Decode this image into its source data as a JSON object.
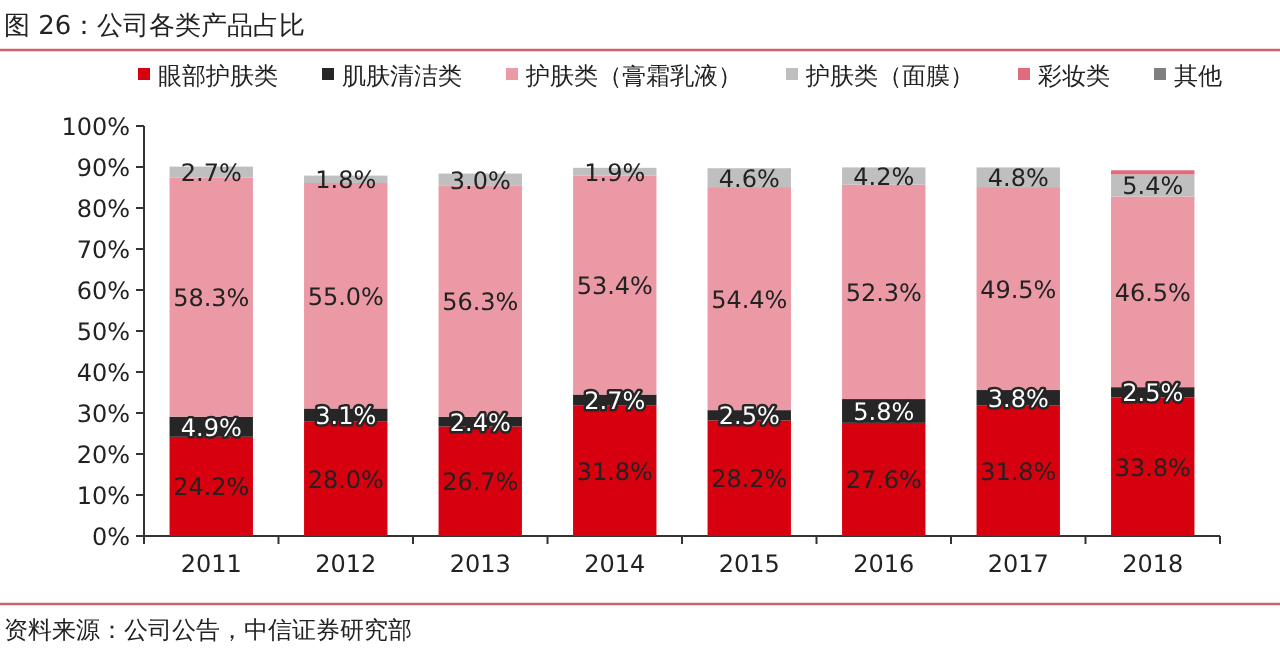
{
  "chart_data": {
    "type": "bar",
    "stacked": true,
    "title": "图 26：公司各类产品占比",
    "annotations": [
      "资料来源：公司公告，中信证券研究部"
    ],
    "categories": [
      "2011",
      "2012",
      "2013",
      "2014",
      "2015",
      "2016",
      "2017",
      "2018"
    ],
    "ylim": [
      0,
      100
    ],
    "yticks": [
      {
        "value": 0,
        "label": "0%"
      },
      {
        "value": 10,
        "label": "10%"
      },
      {
        "value": 20,
        "label": "20%"
      },
      {
        "value": 30,
        "label": "30%"
      },
      {
        "value": 40,
        "label": "40%"
      },
      {
        "value": 50,
        "label": "50%"
      },
      {
        "value": 60,
        "label": "60%"
      },
      {
        "value": 70,
        "label": "70%"
      },
      {
        "value": 80,
        "label": "80%"
      },
      {
        "value": 90,
        "label": "90%"
      },
      {
        "value": 100,
        "label": "100%"
      }
    ],
    "legend": "top",
    "grid": false,
    "series": [
      {
        "name": "眼部护肤类",
        "color": "#d7000f",
        "values": [
          24.2,
          28.0,
          26.7,
          31.8,
          28.2,
          27.6,
          31.8,
          33.8
        ],
        "value_labels": [
          "24.2%",
          "28.0%",
          "26.7%",
          "31.8%",
          "28.2%",
          "27.6%",
          "31.8%",
          "33.8%"
        ]
      },
      {
        "name": "肌肤清洁类",
        "color": "#262626",
        "values": [
          4.9,
          3.1,
          2.4,
          2.7,
          2.5,
          5.8,
          3.8,
          2.5
        ],
        "value_labels": [
          "4.9%",
          "3.1%",
          "2.4%",
          "2.7%",
          "2.5%",
          "5.8%",
          "3.8%",
          "2.5%"
        ]
      },
      {
        "name": "护肤类（膏霜乳液）",
        "color": "#eb9aa5",
        "values": [
          58.3,
          55.0,
          56.3,
          53.4,
          54.4,
          52.3,
          49.5,
          46.5
        ],
        "value_labels": [
          "58.3%",
          "55.0%",
          "56.3%",
          "53.4%",
          "54.4%",
          "52.3%",
          "49.5%",
          "46.5%"
        ]
      },
      {
        "name": "护肤类（面膜）",
        "color": "#bfbfbf",
        "values": [
          2.7,
          1.8,
          3.0,
          1.9,
          4.6,
          4.2,
          4.8,
          5.4
        ],
        "value_labels": [
          "2.7%",
          "1.8%",
          "3.0%",
          "1.9%",
          "4.6%",
          "4.2%",
          "4.8%",
          "5.4%"
        ]
      },
      {
        "name": "彩妆类",
        "color": "#e06b7a",
        "values": [
          null,
          null,
          null,
          null,
          null,
          null,
          null,
          1
        ]
      },
      {
        "name": "其他",
        "color": "#7f7f7f",
        "values": [
          null,
          null,
          null,
          null,
          null,
          null,
          null,
          null
        ]
      }
    ]
  }
}
